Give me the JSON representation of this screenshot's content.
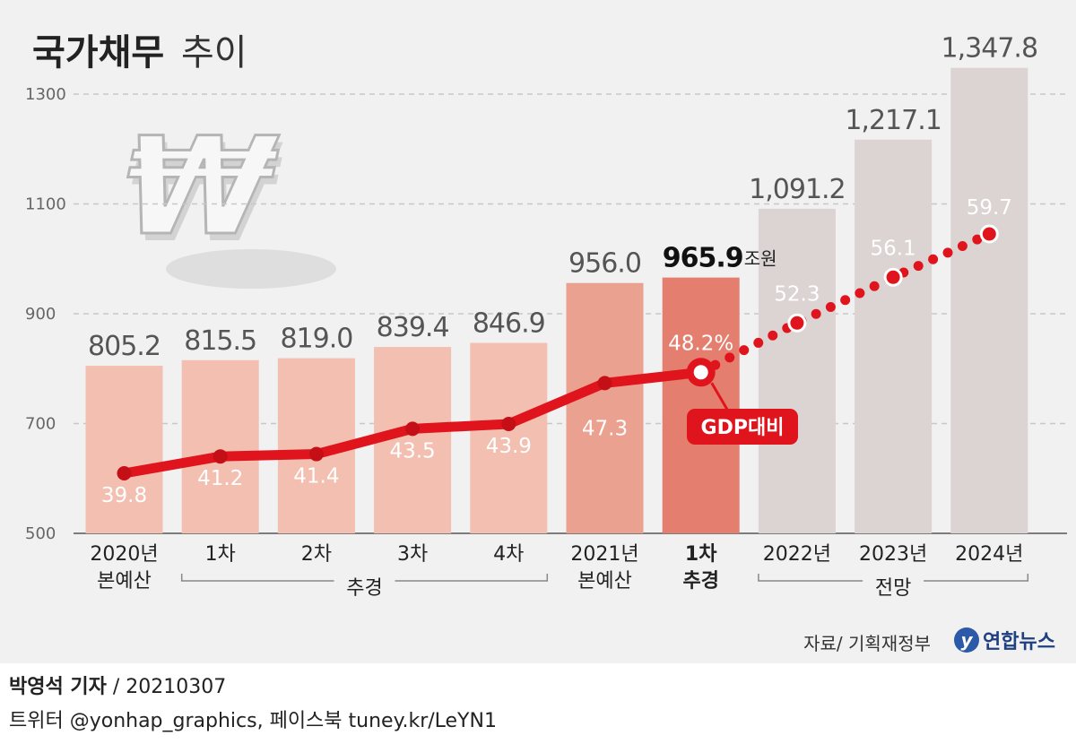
{
  "title_main": "국가채무",
  "title_sub": "추이",
  "chart_data": {
    "type": "bar",
    "y_ticks": [
      1300,
      1100,
      900,
      700,
      500
    ],
    "ylim": [
      500,
      1400
    ],
    "unit_label": "조원",
    "categories": [
      {
        "line1": "2020년",
        "line2": "본예산"
      },
      {
        "line1": "1차",
        "line2": ""
      },
      {
        "line1": "2차",
        "line2": ""
      },
      {
        "line1": "3차",
        "line2": ""
      },
      {
        "line1": "4차",
        "line2": ""
      },
      {
        "line1": "2021년",
        "line2": "본예산"
      },
      {
        "line1": "1차",
        "line2": "추경"
      },
      {
        "line1": "2022년",
        "line2": ""
      },
      {
        "line1": "2023년",
        "line2": ""
      },
      {
        "line1": "2024년",
        "line2": ""
      }
    ],
    "group_labels": [
      {
        "label": "추경",
        "from": 1,
        "to": 4
      },
      {
        "label": "전망",
        "from": 7,
        "to": 9
      }
    ],
    "debt_values": [
      805.2,
      815.5,
      819.0,
      839.4,
      846.9,
      956.0,
      965.9,
      1091.2,
      1217.1,
      1347.8
    ],
    "debt_labels": [
      "805.2",
      "815.5",
      "819.0",
      "839.4",
      "846.9",
      "956.0",
      "965.9",
      "1,091.2",
      "1,217.1",
      "1,347.8"
    ],
    "gdp_ratio": [
      39.8,
      41.2,
      41.4,
      43.5,
      43.9,
      47.3,
      48.2,
      52.3,
      56.1,
      59.7
    ],
    "gdp_ratio_labels": [
      "39.8",
      "41.2",
      "41.4",
      "43.5",
      "43.9",
      "47.3",
      "48.2%",
      "52.3",
      "56.1",
      "59.7"
    ],
    "gdp_badge": "GDP대비",
    "highlight_index": 6,
    "colors": {
      "bar_2020": "#f2bfb1",
      "bar_2021": "#eaa190",
      "bar_highlight": "#e47e6e",
      "bar_forecast": "#dcd3d3",
      "line": "#e0141c",
      "grid": "#c8c8c8"
    }
  },
  "source": "자료/ 기획재정부",
  "logo": "연합뉴스",
  "reporter": "박영석 기자",
  "date": "20210307",
  "social": "트위터 @yonhap_graphics, 페이스북 tuney.kr/LeYN1"
}
